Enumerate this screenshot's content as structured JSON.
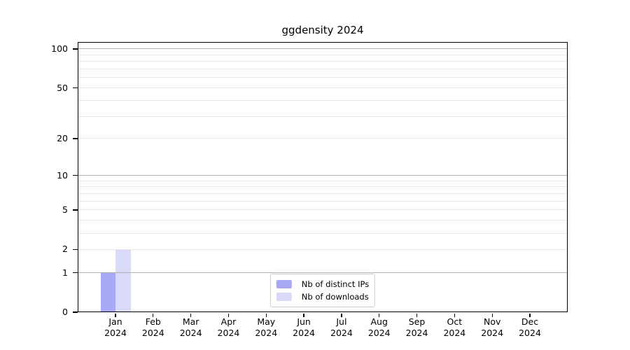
{
  "chart_data": {
    "type": "bar",
    "title": "ggdensity 2024",
    "categories": [
      "Jan",
      "Feb",
      "Mar",
      "Apr",
      "May",
      "Jun",
      "Jul",
      "Aug",
      "Sep",
      "Oct",
      "Nov",
      "Dec"
    ],
    "category_year": "2024",
    "series": [
      {
        "name": "Nb of distinct IPs",
        "color": "#a8a8f5",
        "values": [
          1,
          0,
          0,
          0,
          0,
          0,
          0,
          0,
          0,
          0,
          0,
          0
        ]
      },
      {
        "name": "Nb of downloads",
        "color": "#d9d9f8",
        "values": [
          2,
          0,
          0,
          0,
          0,
          0,
          0,
          0,
          0,
          0,
          0,
          0
        ]
      }
    ],
    "xlabel": "",
    "ylabel": "",
    "y_axis": {
      "scale": "log1p",
      "tick_labels": [
        0,
        1,
        2,
        5,
        10,
        20,
        50,
        100
      ],
      "major_gridlines": [
        1,
        10,
        100
      ],
      "minor_gridlines": [
        2,
        3,
        4,
        5,
        6,
        7,
        8,
        9,
        20,
        30,
        40,
        50,
        60,
        70,
        80,
        90
      ],
      "ylim": [
        0,
        113
      ]
    },
    "legend": {
      "position": "bottom-center",
      "entries": [
        "Nb of distinct IPs",
        "Nb of downloads"
      ]
    },
    "grid": true,
    "colors": {
      "bar_distinct_ips": "#a8a8f5",
      "bar_downloads": "#d9d9f8",
      "major_grid": "#b0b0b0",
      "minor_grid": "#e9e9e9",
      "axis": "#000000",
      "legend_border": "#cccccc",
      "text": "#000000"
    }
  }
}
